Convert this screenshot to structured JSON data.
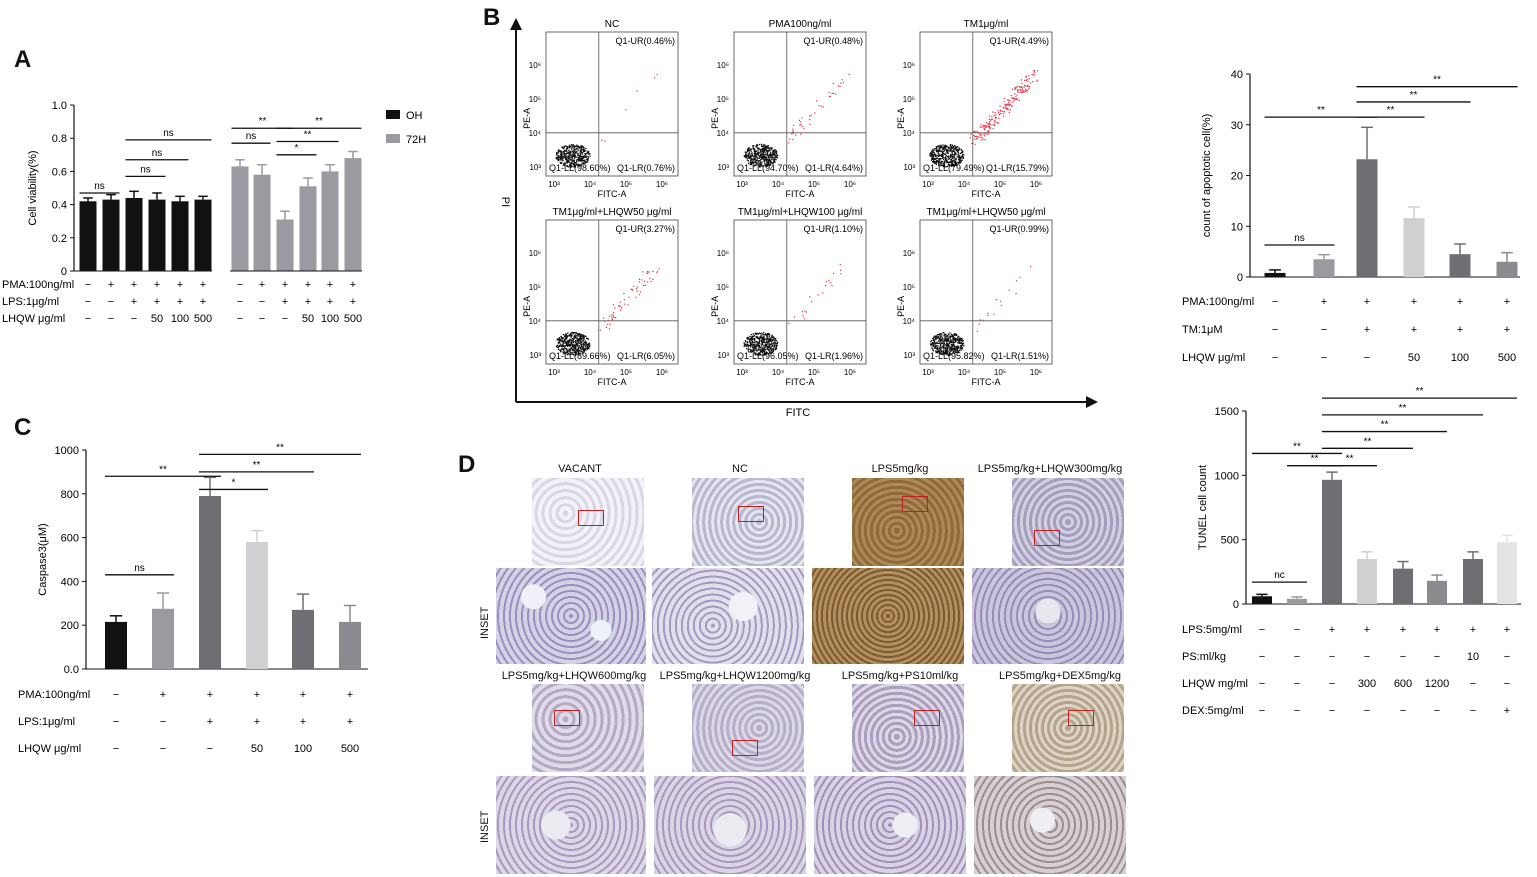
{
  "colors": {
    "black": "#111111",
    "gray": "#9a9aa0",
    "dark": "#6e6f73",
    "mid": "#8a8b8f",
    "light": "#cfd0d2",
    "lighter": "#e4e4e6",
    "red": "#e03040",
    "flow": "#111111"
  },
  "panels": {
    "A": "A",
    "B": "B",
    "C": "C",
    "D": "D"
  },
  "chart_data": [
    {
      "id": "A",
      "type": "bar",
      "ylabel": "Cell viability(%)",
      "ylim": [
        0,
        1.0
      ],
      "yticks": [
        "0",
        "0.2",
        "0.4",
        "0.6",
        "0.8",
        "1.0"
      ],
      "legend": [
        {
          "name": "OH",
          "color": "#111111"
        },
        {
          "name": "72H",
          "color": "#9a9aa0"
        }
      ],
      "values": [
        0.42,
        0.43,
        0.44,
        0.43,
        0.42,
        0.43,
        0.63,
        0.58,
        0.31,
        0.51,
        0.6,
        0.68
      ],
      "errors": [
        0.02,
        0.03,
        0.04,
        0.04,
        0.03,
        0.02,
        0.04,
        0.06,
        0.05,
        0.05,
        0.04,
        0.04
      ],
      "groups": [
        "OH",
        "OH",
        "OH",
        "OH",
        "OH",
        "OH",
        "72H",
        "72H",
        "72H",
        "72H",
        "72H",
        "72H"
      ],
      "rows": [
        {
          "label": "PMA:100ng/ml",
          "cells": [
            "−",
            "+",
            "+",
            "+",
            "+",
            "+",
            "−",
            "+",
            "+",
            "+",
            "+",
            "+"
          ]
        },
        {
          "label": "LPS:1μg/ml",
          "cells": [
            "−",
            "−",
            "+",
            "+",
            "+",
            "+",
            "−",
            "−",
            "+",
            "+",
            "+",
            "+"
          ]
        },
        {
          "label": "LHQW μg/ml",
          "cells": [
            "−",
            "−",
            "−",
            "50",
            "100",
            "500",
            "−",
            "−",
            "−",
            "50",
            "100",
            "500"
          ]
        }
      ],
      "sig": [
        {
          "a": 0,
          "b": 1,
          "y": 0.47,
          "t": "ns"
        },
        {
          "a": 2,
          "b": 3,
          "y": 0.57,
          "t": "ns"
        },
        {
          "a": 2,
          "b": 4,
          "y": 0.67,
          "t": "ns"
        },
        {
          "a": 2,
          "b": 5,
          "y": 0.79,
          "t": "ns"
        },
        {
          "a": 6,
          "b": 7,
          "y": 0.77,
          "t": "ns"
        },
        {
          "a": 6,
          "b": 8,
          "y": 0.86,
          "t": "**"
        },
        {
          "a": 8,
          "b": 9,
          "y": 0.7,
          "t": "*"
        },
        {
          "a": 8,
          "b": 10,
          "y": 0.78,
          "t": "**"
        },
        {
          "a": 8,
          "b": 11,
          "y": 0.86,
          "t": "**"
        }
      ]
    },
    {
      "id": "B",
      "type": "bar",
      "ylabel": "count of apoptotic cell(%)",
      "ylim": [
        0,
        40
      ],
      "yticks": [
        "0",
        "10",
        "20",
        "30",
        "40"
      ],
      "values": [
        0.8,
        3.5,
        23.2,
        11.6,
        4.5,
        3.0
      ],
      "errors": [
        0.6,
        0.9,
        6.3,
        2.2,
        2.0,
        1.8
      ],
      "colors": [
        "#111111",
        "#9a9aa0",
        "#6e6f73",
        "#cfd0d2",
        "#6e6f73",
        "#8a8b8f"
      ],
      "rows": [
        {
          "label": "PMA:100ng/ml",
          "cells": [
            "−",
            "+",
            "+",
            "+",
            "+",
            "+"
          ]
        },
        {
          "label": "TM:1μM",
          "cells": [
            "−",
            "−",
            "+",
            "+",
            "+",
            "+"
          ]
        },
        {
          "label": "LHQW μg/ml",
          "cells": [
            "−",
            "−",
            "−",
            "50",
            "100",
            "500"
          ]
        }
      ],
      "sig": [
        {
          "a": 0,
          "b": 1,
          "y": 6.3,
          "t": "ns"
        },
        {
          "a": 0,
          "b": 2,
          "y": 31.5,
          "t": "**"
        },
        {
          "a": 2,
          "b": 3,
          "y": 31.5,
          "t": "**"
        },
        {
          "a": 2,
          "b": 4,
          "y": 34.5,
          "t": "**"
        },
        {
          "a": 2,
          "b": 5,
          "y": 37.5,
          "t": "**"
        }
      ]
    },
    {
      "id": "C",
      "type": "bar",
      "ylabel": "Caspase3(μM)",
      "ylim": [
        0,
        1000
      ],
      "yticks": [
        "0.0",
        "200",
        "400",
        "600",
        "800",
        "1000"
      ],
      "values": [
        215,
        275,
        790,
        580,
        270,
        215
      ],
      "errors": [
        28,
        72,
        85,
        52,
        72,
        75
      ],
      "colors": [
        "#111111",
        "#9a9aa0",
        "#6e6f73",
        "#cfd0d2",
        "#6e6f73",
        "#8a8b8f"
      ],
      "rows": [
        {
          "label": "PMA:100ng/ml",
          "cells": [
            "−",
            "+",
            "+",
            "+",
            "+",
            "+"
          ]
        },
        {
          "label": "LPS:1μg/ml",
          "cells": [
            "−",
            "−",
            "+",
            "+",
            "+",
            "+"
          ]
        },
        {
          "label": "LHQW μg/ml",
          "cells": [
            "−",
            "−",
            "−",
            "50",
            "100",
            "500"
          ]
        }
      ],
      "sig": [
        {
          "a": 0,
          "b": 1,
          "y": 430,
          "t": "ns"
        },
        {
          "a": 0,
          "b": 2,
          "y": 880,
          "t": "**"
        },
        {
          "a": 2,
          "b": 3,
          "y": 820,
          "t": "*"
        },
        {
          "a": 2,
          "b": 4,
          "y": 900,
          "t": "**"
        },
        {
          "a": 2,
          "b": 5,
          "y": 980,
          "t": "**"
        }
      ]
    },
    {
      "id": "D",
      "type": "bar",
      "ylabel": "TUNEL cell count",
      "ylim": [
        0,
        1500
      ],
      "yticks": [
        "0",
        "500",
        "1000",
        "1500"
      ],
      "values": [
        60,
        40,
        965,
        350,
        275,
        180,
        350,
        480
      ],
      "errors": [
        15,
        15,
        60,
        55,
        55,
        45,
        55,
        55
      ],
      "colors": [
        "#111111",
        "#9a9aa0",
        "#6e6f73",
        "#cfd0d2",
        "#6e6f73",
        "#8a8b8f",
        "#6e6f73",
        "#e4e4e6"
      ],
      "rows": [
        {
          "label": "LPS:5mg/ml",
          "cells": [
            "−",
            "−",
            "+",
            "+",
            "+",
            "+",
            "+",
            "+"
          ]
        },
        {
          "label": "PS:ml/kg",
          "cells": [
            "−",
            "−",
            "−",
            "−",
            "−",
            "−",
            "10",
            "−"
          ]
        },
        {
          "label": "LHQW mg/ml",
          "cells": [
            "−",
            "−",
            "−",
            "300",
            "600",
            "1200",
            "−",
            "−"
          ]
        },
        {
          "label": "DEX:5mg/ml",
          "cells": [
            "−",
            "−",
            "−",
            "−",
            "−",
            "−",
            "−",
            "+"
          ]
        }
      ],
      "sig": [
        {
          "a": 0,
          "b": 1,
          "y": 170,
          "t": "nc"
        },
        {
          "a": 0,
          "b": 2,
          "y": 1170,
          "t": "**"
        },
        {
          "a": 1,
          "b": 2,
          "y": 1075,
          "t": "**"
        },
        {
          "a": 2,
          "b": 3,
          "y": 1075,
          "t": "**"
        },
        {
          "a": 2,
          "b": 4,
          "y": 1210,
          "t": "**"
        },
        {
          "a": 2,
          "b": 5,
          "y": 1340,
          "t": "**"
        },
        {
          "a": 2,
          "b": 6,
          "y": 1470,
          "t": "**"
        },
        {
          "a": 2,
          "b": 7,
          "y": 1600,
          "t": "**"
        }
      ]
    },
    {
      "id": "flow",
      "type": "scatter",
      "xlabel": "FITC",
      "ylabel": "PI",
      "ticks_x": [
        "10³",
        "10⁴",
        "10⁵",
        "10⁶"
      ],
      "ticks_y": [
        "10³",
        "10⁴",
        "10⁵",
        "10⁶"
      ],
      "axis_x": "FITC-A",
      "axis_y": "PE-A",
      "plots": [
        {
          "title": "NC",
          "ur": "Q1-UR(0.46%)",
          "ll": "Q1-LL(98.60%)",
          "lr": "Q1-LR(0.76%)"
        },
        {
          "title": "PMA100ng/ml",
          "ur": "Q1-UR(0.48%)",
          "ll": "Q1-LL(94.70%)",
          "lr": "Q1-LR(4.64%)"
        },
        {
          "title": "TM1μg/ml",
          "ur": "Q1-UR(4.49%)",
          "ll": "Q1-LL(79.49%)",
          "lr": "Q1-LR(15.79%)"
        },
        {
          "title": "TM1μg/ml+LHQW50 μg/ml",
          "ur": "Q1-UR(3.27%)",
          "ll": "Q1-LL(89.66%)",
          "lr": "Q1-LR(6.05%)"
        },
        {
          "title": "TM1μg/ml+LHQW100 μg/ml",
          "ur": "Q1-UR(1.10%)",
          "ll": "Q1-LL(96.05%)",
          "lr": "Q1-LR(1.96%)"
        },
        {
          "title": "TM1μg/ml+LHQW50 μg/ml",
          "ur": "Q1-UR(0.99%)",
          "ll": "Q1-LL(95.82%)",
          "lr": "Q1-LR(1.51%)"
        }
      ]
    }
  ],
  "histology": {
    "titles_top": [
      "VACANT",
      "NC",
      "LPS5mg/kg",
      "LPS5mg/kg+LHQW300mg/kg"
    ],
    "titles_bottom": [
      "LPS5mg/kg+LHQW600mg/kg",
      "LPS5mg/kg+LHQW1200mg/kg",
      "LPS5mg/kg+PS10ml/kg",
      "LPS5mg/kg+DEX5mg/kg"
    ],
    "inset_label": "INSET"
  }
}
